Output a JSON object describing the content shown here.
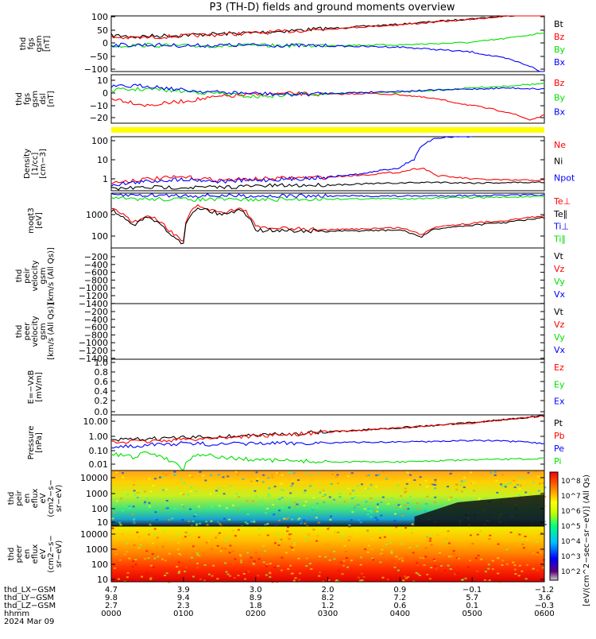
{
  "title": "P3 (TH-D) fields and ground moments overview",
  "colors": {
    "black": "#000000",
    "red": "#ff0000",
    "green": "#00e000",
    "blue": "#0000ff",
    "yellow": "#ffff00"
  },
  "chart_data": {
    "type": "line",
    "panels": [
      {
        "id": "fgs-gsm",
        "ylabel": [
          "thd",
          "fgs",
          "gsm",
          "[nT]"
        ],
        "yticks": [
          "100",
          "50",
          "0",
          "−50",
          "−100"
        ],
        "ylim": [
          -100,
          100
        ],
        "legend": [
          {
            "text": "Bt",
            "color": "#000000"
          },
          {
            "text": "Bz",
            "color": "#ff0000"
          },
          {
            "text": "By",
            "color": "#00e000"
          },
          {
            "text": "Bx",
            "color": "#0000ff"
          }
        ],
        "series": [
          {
            "name": "Bt",
            "color": "#000000",
            "x": [
              0,
              0.3,
              1,
              2,
              3,
              4,
              5,
              5.5,
              6
            ],
            "y": [
              30,
              26,
              31,
              40,
              55,
              70,
              90,
              100,
              115
            ]
          },
          {
            "name": "Bz",
            "color": "#ff0000",
            "x": [
              0,
              0.3,
              1,
              2,
              3,
              4,
              5,
              5.5,
              6
            ],
            "y": [
              24,
              20,
              28,
              38,
              53,
              68,
              88,
              100,
              114
            ]
          },
          {
            "name": "By",
            "color": "#00e000",
            "x": [
              0,
              0.5,
              1,
              2,
              3,
              4,
              5,
              5.5,
              6
            ],
            "y": [
              -8,
              -5,
              -8,
              -7,
              -6,
              -4,
              5,
              20,
              40
            ]
          },
          {
            "name": "Bx",
            "color": "#0000ff",
            "x": [
              0,
              0.5,
              1,
              2,
              3,
              4,
              5,
              5.5,
              5.8,
              6
            ],
            "y": [
              -5,
              -4,
              -7,
              -5,
              -8,
              -12,
              -30,
              -55,
              -80,
              -110
            ]
          }
        ]
      },
      {
        "id": "fgs-dsl",
        "ylabel": [
          "thd",
          "fgs",
          "gsm",
          "dsl",
          "[nT]"
        ],
        "yticks": [
          "10",
          "0",
          "−10",
          "−20"
        ],
        "ylim": [
          -28,
          16
        ],
        "legend": [
          {
            "text": "Bz",
            "color": "#ff0000"
          },
          {
            "text": "By",
            "color": "#00e000"
          },
          {
            "text": "Bx",
            "color": "#0000ff"
          }
        ],
        "series": [
          {
            "name": "Bz",
            "color": "#ff0000",
            "x": [
              0,
              0.5,
              1,
              1.5,
              2,
              2.5,
              3,
              3.5,
              4,
              4.5,
              5,
              5.5,
              5.8,
              6
            ],
            "y": [
              -5,
              -12,
              -8,
              -4,
              -2,
              -1,
              -2,
              -1,
              -2,
              -6,
              -12,
              -18,
              -25,
              -21
            ]
          },
          {
            "name": "By",
            "color": "#00e000",
            "x": [
              0,
              0.5,
              1,
              1.5,
              2,
              2.5,
              3,
              3.5,
              4,
              4.5,
              5,
              5.5,
              6
            ],
            "y": [
              2,
              3,
              1,
              -1,
              -4,
              -2,
              -1,
              0,
              0,
              2,
              4,
              6,
              8
            ]
          },
          {
            "name": "Bx",
            "color": "#0000ff",
            "x": [
              0,
              0.5,
              1,
              1.5,
              2,
              2.5,
              3,
              3.5,
              4,
              4.5,
              5,
              5.5,
              6
            ],
            "y": [
              5,
              6,
              2,
              0,
              -1,
              -2,
              -1,
              0,
              1,
              2,
              3,
              4,
              3
            ]
          }
        ]
      },
      {
        "id": "density",
        "ylabel": [
          "Density",
          "[1/cc]",
          "[cm−3]"
        ],
        "yticks": [
          "100",
          "10",
          "1"
        ],
        "scale": "log",
        "ylim": [
          0.2,
          120
        ],
        "legend": [
          {
            "text": "Ne",
            "color": "#ff0000"
          },
          {
            "text": "Ni",
            "color": "#000000"
          },
          {
            "text": "Npot",
            "color": "#0000ff"
          }
        ],
        "series": [
          {
            "name": "Ne",
            "color": "#ff0000",
            "x": [
              0,
              0.5,
              1,
              1.5,
              2,
              2.5,
              3,
              3.5,
              4,
              4.3,
              4.5,
              5,
              5.5,
              6
            ],
            "y": [
              0.5,
              0.8,
              1.0,
              0.7,
              0.8,
              0.9,
              1.0,
              1.3,
              1.8,
              3.0,
              1.2,
              0.8,
              0.7,
              0.7
            ]
          },
          {
            "name": "Ni",
            "color": "#000000",
            "x": [
              0,
              0.5,
              1,
              1.5,
              2,
              3,
              4,
              4.5,
              5,
              6
            ],
            "y": [
              0.25,
              0.3,
              0.3,
              0.3,
              0.35,
              0.4,
              0.5,
              0.55,
              0.5,
              0.55
            ]
          },
          {
            "name": "Npot",
            "color": "#0000ff",
            "x": [
              0,
              0.5,
              1,
              1.5,
              2,
              2.5,
              3,
              3.5,
              4,
              4.2,
              4.35,
              4.5,
              4.7,
              5
            ],
            "y": [
              0.4,
              0.6,
              0.8,
              0.6,
              0.7,
              0.8,
              1.0,
              1.5,
              3,
              8,
              50,
              100,
              120,
              120
            ]
          }
        ]
      },
      {
        "id": "temperature",
        "ylabel": [
          "moqt3",
          "[eV]"
        ],
        "yticks": [
          "1000",
          "100"
        ],
        "scale": "log",
        "ylim": [
          30,
          5000
        ],
        "legend": [
          {
            "text": "Te⊥",
            "color": "#ff0000"
          },
          {
            "text": "Te∥",
            "color": "#000000"
          },
          {
            "text": "Ti⊥",
            "color": "#0000ff"
          },
          {
            "text": "Ti∥",
            "color": "#00e000"
          }
        ],
        "series": [
          {
            "name": "Ti⊥",
            "color": "#0000ff",
            "x": [
              0,
              1,
              2,
              3,
              4,
              5,
              6
            ],
            "y": [
              4200,
              4000,
              3900,
              3800,
              3800,
              4000,
              4200
            ]
          },
          {
            "name": "Ti∥",
            "color": "#00e000",
            "x": [
              0,
              1,
              2,
              3,
              4,
              5,
              6
            ],
            "y": [
              3000,
              2800,
              2700,
              2900,
              3000,
              3300,
              3600
            ]
          },
          {
            "name": "Te⊥",
            "color": "#ff0000",
            "x": [
              0,
              0.3,
              0.5,
              0.8,
              1,
              1.2,
              1.5,
              1.8,
              2,
              2.5,
              3,
              3.5,
              4,
              4.3,
              4.5,
              5,
              5.5,
              6
            ],
            "y": [
              1200,
              300,
              600,
              150,
              50,
              1500,
              800,
              1200,
              200,
              180,
              160,
              180,
              200,
              100,
              220,
              300,
              400,
              600
            ]
          },
          {
            "name": "Te∥",
            "color": "#000000",
            "x": [
              0,
              0.3,
              0.5,
              0.8,
              1,
              1.2,
              1.5,
              1.8,
              2,
              2.5,
              3,
              3.5,
              4,
              4.3,
              4.5,
              5,
              5.5,
              6
            ],
            "y": [
              1000,
              250,
              500,
              120,
              40,
              1300,
              700,
              1000,
              160,
              150,
              140,
              150,
              160,
              80,
              180,
              250,
              330,
              500
            ]
          }
        ]
      },
      {
        "id": "peir-velocity",
        "ylabel": [
          "thd",
          "peir",
          "velocity",
          "gsm",
          "[km/s (All Qs)]"
        ],
        "yticks": [
          "−200",
          "−400",
          "−600",
          "−800",
          "−1000",
          "−1200",
          "−1400"
        ],
        "legend": [
          {
            "text": "Vt",
            "color": "#000000"
          },
          {
            "text": "Vz",
            "color": "#ff0000"
          },
          {
            "text": "Vy",
            "color": "#00e000"
          },
          {
            "text": "Vx",
            "color": "#0000ff"
          }
        ],
        "series": []
      },
      {
        "id": "peer-velocity",
        "ylabel": [
          "thd",
          "peer",
          "velocity",
          "gsm",
          "[km/s (All Qs)]"
        ],
        "yticks": [
          "−200",
          "−400",
          "−600",
          "−800",
          "−1000",
          "−1200",
          "−1400"
        ],
        "legend": [
          {
            "text": "Vt",
            "color": "#000000"
          },
          {
            "text": "Vz",
            "color": "#ff0000"
          },
          {
            "text": "Vy",
            "color": "#00e000"
          },
          {
            "text": "Vx",
            "color": "#0000ff"
          }
        ],
        "series": []
      },
      {
        "id": "efield",
        "ylabel": [
          "E=−VxB",
          "[mV/m]"
        ],
        "yticks": [
          "1.0",
          "0.8",
          "0.6",
          "0.4",
          "0.2",
          "0.0"
        ],
        "legend": [
          {
            "text": "Ez",
            "color": "#ff0000"
          },
          {
            "text": "Ey",
            "color": "#00e000"
          },
          {
            "text": "Ex",
            "color": "#0000ff"
          }
        ],
        "series": []
      },
      {
        "id": "pressure",
        "ylabel": [
          "Pressure",
          "[nPa]"
        ],
        "yticks": [
          "10.00",
          "1.00",
          "0.10",
          "0.01"
        ],
        "scale": "log",
        "ylim": [
          0.004,
          20
        ],
        "legend": [
          {
            "text": "Pt",
            "color": "#000000"
          },
          {
            "text": "Pb",
            "color": "#ff0000"
          },
          {
            "text": "Pe",
            "color": "#0000ff"
          },
          {
            "text": "Pi",
            "color": "#00e000"
          }
        ],
        "series": [
          {
            "name": "Pt",
            "color": "#000000",
            "x": [
              0,
              0.5,
              1,
              1.5,
              2,
              2.5,
              3,
              3.5,
              4,
              4.5,
              5,
              5.5,
              6
            ],
            "y": [
              0.4,
              0.5,
              0.6,
              0.7,
              0.9,
              1.1,
              1.5,
              2.0,
              2.8,
              4,
              6,
              10,
              17
            ]
          },
          {
            "name": "Pb",
            "color": "#ff0000",
            "x": [
              0,
              0.5,
              1,
              1.5,
              2,
              2.5,
              3,
              3.5,
              4,
              4.5,
              5,
              5.5,
              6
            ],
            "y": [
              0.3,
              0.35,
              0.45,
              0.6,
              0.8,
              1.0,
              1.4,
              1.9,
              2.7,
              3.9,
              5.8,
              9.8,
              16
            ]
          },
          {
            "name": "Pe",
            "color": "#0000ff",
            "x": [
              0,
              0.5,
              1,
              1.5,
              2,
              3,
              4,
              4.5,
              5,
              5.5,
              6
            ],
            "y": [
              0.15,
              0.2,
              0.25,
              0.22,
              0.25,
              0.28,
              0.32,
              0.35,
              0.4,
              0.35,
              0.25
            ]
          },
          {
            "name": "Pi",
            "color": "#00e000",
            "x": [
              0,
              0.3,
              0.5,
              0.8,
              1,
              1.2,
              1.5,
              2,
              3,
              4,
              5,
              6
            ],
            "y": [
              0.05,
              0.03,
              0.06,
              0.02,
              0.004,
              0.05,
              0.03,
              0.02,
              0.015,
              0.015,
              0.02,
              0.025
            ]
          }
        ]
      },
      {
        "id": "peir-spec",
        "type": "heatmap",
        "ylabel": [
          "thd",
          "peir",
          "en",
          "eflux",
          "eV",
          "(cm2−s−",
          "sr−eV)"
        ],
        "yticks": [
          "10000",
          "1000",
          "100",
          "10"
        ]
      },
      {
        "id": "peer-spec",
        "type": "heatmap",
        "ylabel": [
          "thd",
          "peer",
          "en",
          "eflux",
          "eV",
          "(cm2−s−",
          "sr−eV)"
        ],
        "yticks": [
          "10000",
          "1000",
          "100",
          "10"
        ]
      }
    ],
    "colorbar": {
      "label": "[eV/(cm^2−sec−sr−eV)] (All Qs)",
      "ticks": [
        "10^8",
        "10^7",
        "10^6",
        "10^5",
        "10^4",
        "10^3",
        "10^2"
      ]
    },
    "x_axis": {
      "xlim": [
        0,
        6
      ],
      "rows": [
        {
          "label": "thd_LX−GSM",
          "values": [
            "4.7",
            "3.9",
            "3.0",
            "2.0",
            "0.9",
            "−0.1",
            "−1.2"
          ]
        },
        {
          "label": "thd_LY−GSM",
          "values": [
            "9.8",
            "9.4",
            "8.9",
            "8.2",
            "7.2",
            "5.7",
            "3.6"
          ]
        },
        {
          "label": "thd_LZ−GSM",
          "values": [
            "2.7",
            "2.3",
            "1.8",
            "1.2",
            "0.6",
            "0.1",
            "−0.3"
          ]
        },
        {
          "label": "hhmm",
          "values": [
            "0000",
            "0100",
            "0200",
            "0300",
            "0400",
            "0500",
            "0600"
          ]
        }
      ],
      "date": "2024 Mar 09"
    }
  }
}
